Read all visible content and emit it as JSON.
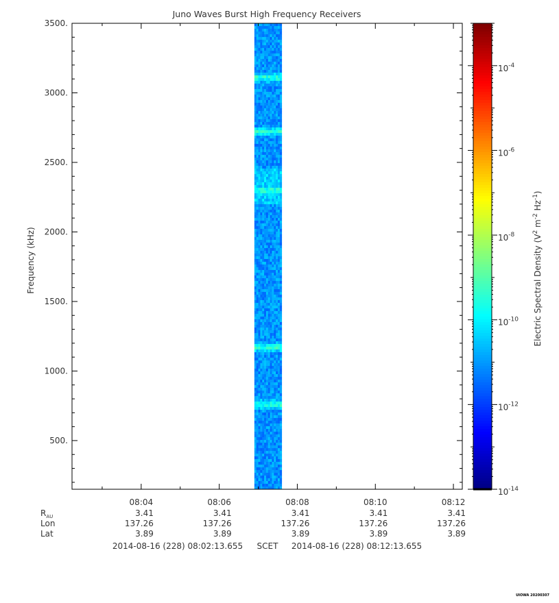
{
  "chart_data": {
    "type": "heatmap",
    "title": "Juno Waves Burst High Frequency Receivers",
    "ylabel": "Frequency (kHz)",
    "yticks": [
      "500.",
      "1000.",
      "1500.",
      "2000.",
      "2500.",
      "3000.",
      "3500."
    ],
    "ytick_values": [
      500,
      1000,
      1500,
      2000,
      2500,
      3000,
      3500
    ],
    "ylim": [
      150,
      3500
    ],
    "xlim_minutes": [
      2.2276,
      12.2276
    ],
    "xticks": [
      "08:04",
      "08:06",
      "08:08",
      "08:10",
      "08:12"
    ],
    "xtick_minutes": [
      4,
      6,
      8,
      10,
      12
    ],
    "data_interval_minutes": [
      6.9,
      7.6
    ],
    "bright_bands_khz": [
      760,
      1170,
      2300,
      2720,
      3110
    ],
    "colorbar": {
      "label": "Electric Spectral Density (V² m⁻² Hz⁻¹)",
      "label_main": "Electric Spectral Density (V",
      "label_sup1": "2",
      "label_mid": " m",
      "label_sup2": "-2",
      "label_mid2": " Hz",
      "label_sup3": "-1",
      "label_end": ")",
      "log_min": -14,
      "log_max": -3,
      "tick_exponents": [
        -14,
        -12,
        -10,
        -8,
        -6,
        -4
      ],
      "tick_base": "10"
    },
    "ephemeris": {
      "rows": [
        {
          "label": "R",
          "sub": "AU",
          "values": [
            "3.41",
            "3.41",
            "3.41",
            "3.41",
            "3.41"
          ]
        },
        {
          "label": "Lon",
          "sub": "",
          "values": [
            "137.26",
            "137.26",
            "137.26",
            "137.26",
            "137.26"
          ]
        },
        {
          "label": "Lat",
          "sub": "",
          "values": [
            "3.89",
            "3.89",
            "3.89",
            "3.89",
            "3.89"
          ]
        }
      ]
    },
    "time_range": {
      "start": "2014-08-16 (228) 08:02:13.655",
      "scet": "SCET",
      "end": "2014-08-16 (228) 08:12:13.655"
    }
  },
  "footer": {
    "tag": "UIOWA 20200307"
  },
  "colors": {
    "axis": "#000000",
    "text": "#333333"
  }
}
